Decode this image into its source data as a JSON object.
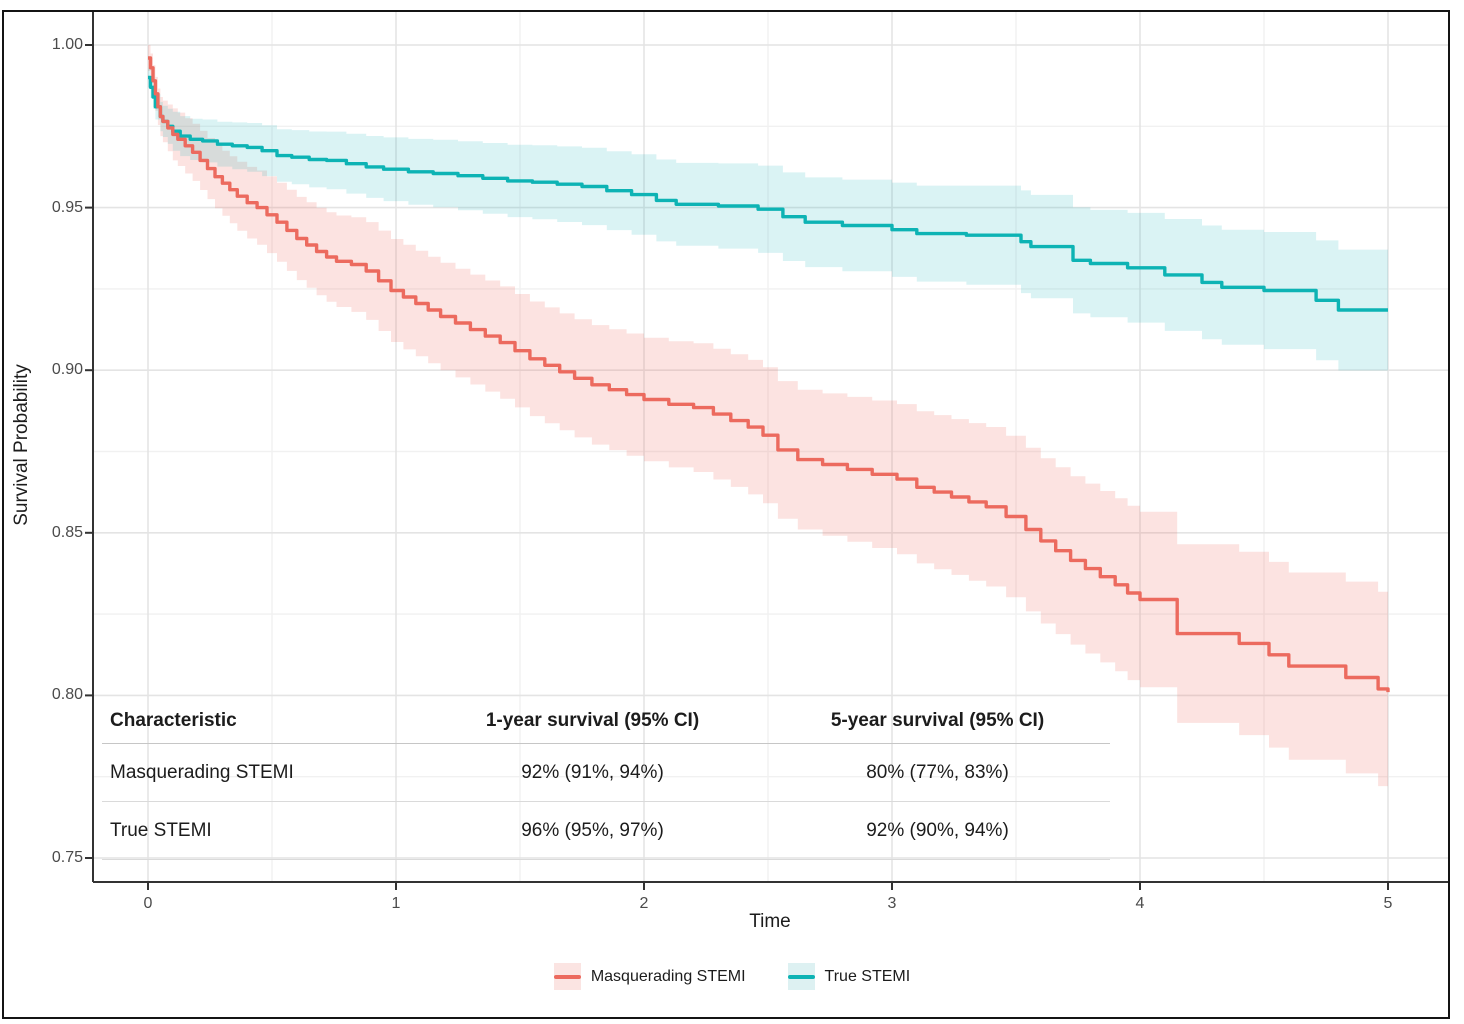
{
  "figure": {
    "background": "#ffffff",
    "border_color": "#141414"
  },
  "axes": {
    "x": {
      "label": "Time",
      "tick_labels": [
        "0",
        "1",
        "2",
        "3",
        "4",
        "5"
      ],
      "tick_values": [
        0,
        1,
        2,
        3,
        4,
        5
      ],
      "minor_values": [
        0.5,
        1.5,
        2.5,
        3.5,
        4.5
      ],
      "range": [
        0,
        5
      ]
    },
    "y": {
      "label": "Survival Probability",
      "tick_labels": [
        "1.00",
        "0.95",
        "0.90",
        "0.85",
        "0.80",
        "0.75"
      ],
      "tick_values": [
        1.0,
        0.95,
        0.9,
        0.85,
        0.8,
        0.75
      ],
      "minor_values": [
        0.975,
        0.925,
        0.875,
        0.825,
        0.775
      ],
      "range": [
        0.75,
        1.0
      ]
    }
  },
  "chart_data": {
    "type": "line",
    "subtype": "kaplan-meier-step-with-ci-ribbons",
    "title": "",
    "xlabel": "Time",
    "ylabel": "Survival Probability",
    "xlim": [
      0,
      5
    ],
    "ylim": [
      0.75,
      1.0
    ],
    "grid": true,
    "legend_position": "bottom",
    "grid_major_color": "#e4e4e4",
    "grid_minor_color": "#f1f1f1",
    "axis_line_color": "#333333",
    "series": [
      {
        "name": "Masquerading STEMI",
        "color": "#EC6A5E",
        "ribbon_color": "rgba(237,104,97,0.19)",
        "swatch_fill": "#FBE4E2",
        "points": [
          [
            0,
            0.996
          ],
          [
            0.01,
            0.993
          ],
          [
            0.02,
            0.989
          ],
          [
            0.03,
            0.985
          ],
          [
            0.04,
            0.981
          ],
          [
            0.05,
            0.978
          ],
          [
            0.06,
            0.9765
          ],
          [
            0.08,
            0.9745
          ],
          [
            0.1,
            0.9725
          ],
          [
            0.12,
            0.971
          ],
          [
            0.15,
            0.969
          ],
          [
            0.18,
            0.967
          ],
          [
            0.21,
            0.9645
          ],
          [
            0.24,
            0.962
          ],
          [
            0.27,
            0.9595
          ],
          [
            0.3,
            0.9575
          ],
          [
            0.33,
            0.9555
          ],
          [
            0.36,
            0.9535
          ],
          [
            0.4,
            0.9515
          ],
          [
            0.44,
            0.95
          ],
          [
            0.48,
            0.9478
          ],
          [
            0.52,
            0.9455
          ],
          [
            0.56,
            0.943
          ],
          [
            0.6,
            0.9405
          ],
          [
            0.64,
            0.9385
          ],
          [
            0.68,
            0.9365
          ],
          [
            0.72,
            0.9348
          ],
          [
            0.76,
            0.9335
          ],
          [
            0.82,
            0.9325
          ],
          [
            0.88,
            0.9305
          ],
          [
            0.93,
            0.9275
          ],
          [
            0.98,
            0.9245
          ],
          [
            1.03,
            0.9225
          ],
          [
            1.08,
            0.9205
          ],
          [
            1.13,
            0.9185
          ],
          [
            1.18,
            0.9165
          ],
          [
            1.24,
            0.9145
          ],
          [
            1.3,
            0.9125
          ],
          [
            1.36,
            0.9105
          ],
          [
            1.42,
            0.9085
          ],
          [
            1.48,
            0.906
          ],
          [
            1.54,
            0.9035
          ],
          [
            1.6,
            0.9015
          ],
          [
            1.66,
            0.8995
          ],
          [
            1.72,
            0.8975
          ],
          [
            1.79,
            0.8955
          ],
          [
            1.86,
            0.894
          ],
          [
            1.93,
            0.8925
          ],
          [
            2,
            0.891
          ],
          [
            2.1,
            0.8895
          ],
          [
            2.2,
            0.8885
          ],
          [
            2.28,
            0.8865
          ],
          [
            2.35,
            0.8845
          ],
          [
            2.42,
            0.8825
          ],
          [
            2.48,
            0.88
          ],
          [
            2.54,
            0.8755
          ],
          [
            2.62,
            0.8725
          ],
          [
            2.72,
            0.871
          ],
          [
            2.82,
            0.8695
          ],
          [
            2.92,
            0.868
          ],
          [
            3.02,
            0.8665
          ],
          [
            3.1,
            0.864
          ],
          [
            3.17,
            0.8625
          ],
          [
            3.24,
            0.861
          ],
          [
            3.31,
            0.8595
          ],
          [
            3.38,
            0.858
          ],
          [
            3.46,
            0.855
          ],
          [
            3.54,
            0.851
          ],
          [
            3.6,
            0.8475
          ],
          [
            3.66,
            0.8445
          ],
          [
            3.72,
            0.8415
          ],
          [
            3.78,
            0.839
          ],
          [
            3.84,
            0.8365
          ],
          [
            3.9,
            0.834
          ],
          [
            3.95,
            0.8315
          ],
          [
            4,
            0.8295
          ],
          [
            4.15,
            0.819
          ],
          [
            4.4,
            0.816
          ],
          [
            4.52,
            0.8125
          ],
          [
            4.6,
            0.809
          ],
          [
            4.83,
            0.8055
          ],
          [
            4.96,
            0.802
          ],
          [
            5,
            0.801
          ]
        ],
        "ci_halfwidth": [
          [
            0,
            0.004
          ],
          [
            0.1,
            0.008
          ],
          [
            0.5,
            0.012
          ],
          [
            1,
            0.016
          ],
          [
            2,
            0.019
          ],
          [
            3,
            0.023
          ],
          [
            4,
            0.027
          ],
          [
            5,
            0.03
          ]
        ]
      },
      {
        "name": "True STEMI",
        "color": "#0DB3B4",
        "ribbon_color": "rgba(23,181,184,0.16)",
        "swatch_fill": "#DDF1F2",
        "points": [
          [
            0,
            0.99
          ],
          [
            0.01,
            0.987
          ],
          [
            0.02,
            0.984
          ],
          [
            0.03,
            0.981
          ],
          [
            0.05,
            0.978
          ],
          [
            0.06,
            0.9765
          ],
          [
            0.08,
            0.975
          ],
          [
            0.1,
            0.9735
          ],
          [
            0.13,
            0.972
          ],
          [
            0.17,
            0.971
          ],
          [
            0.22,
            0.9705
          ],
          [
            0.28,
            0.9695
          ],
          [
            0.34,
            0.969
          ],
          [
            0.4,
            0.9685
          ],
          [
            0.46,
            0.9675
          ],
          [
            0.52,
            0.966
          ],
          [
            0.58,
            0.9655
          ],
          [
            0.65,
            0.9648
          ],
          [
            0.72,
            0.9645
          ],
          [
            0.8,
            0.9635
          ],
          [
            0.88,
            0.9625
          ],
          [
            0.95,
            0.9618
          ],
          [
            1.05,
            0.961
          ],
          [
            1.15,
            0.9605
          ],
          [
            1.25,
            0.9598
          ],
          [
            1.35,
            0.959
          ],
          [
            1.45,
            0.9582
          ],
          [
            1.55,
            0.9578
          ],
          [
            1.65,
            0.9572
          ],
          [
            1.75,
            0.9565
          ],
          [
            1.85,
            0.9552
          ],
          [
            1.95,
            0.954
          ],
          [
            2.05,
            0.9522
          ],
          [
            2.13,
            0.951
          ],
          [
            2.3,
            0.9505
          ],
          [
            2.46,
            0.9495
          ],
          [
            2.56,
            0.9472
          ],
          [
            2.65,
            0.9455
          ],
          [
            2.8,
            0.9445
          ],
          [
            3,
            0.9432
          ],
          [
            3.1,
            0.942
          ],
          [
            3.3,
            0.9415
          ],
          [
            3.52,
            0.9395
          ],
          [
            3.56,
            0.938
          ],
          [
            3.73,
            0.9338
          ],
          [
            3.8,
            0.9328
          ],
          [
            3.95,
            0.9315
          ],
          [
            4.1,
            0.9293
          ],
          [
            4.25,
            0.927
          ],
          [
            4.33,
            0.9255
          ],
          [
            4.5,
            0.9245
          ],
          [
            4.71,
            0.9215
          ],
          [
            4.8,
            0.9185
          ],
          [
            5,
            0.9185
          ]
        ],
        "ci_halfwidth": [
          [
            0,
            0.003
          ],
          [
            0.1,
            0.006
          ],
          [
            0.5,
            0.008
          ],
          [
            1,
            0.01
          ],
          [
            2,
            0.0125
          ],
          [
            3,
            0.0145
          ],
          [
            4,
            0.017
          ],
          [
            5,
            0.019
          ]
        ]
      }
    ]
  },
  "table": {
    "headers": [
      "Characteristic",
      "1-year survival (95% CI)",
      "5-year survival (95% CI)"
    ],
    "rows": [
      {
        "characteristic": "Masquerading STEMI",
        "one_year": "92% (91%, 94%)",
        "five_year": "80% (77%, 83%)"
      },
      {
        "characteristic": "True STEMI",
        "one_year": "96% (95%, 97%)",
        "five_year": "92% (90%, 94%)"
      }
    ]
  },
  "legend": {
    "items": [
      {
        "label": "Masquerading STEMI"
      },
      {
        "label": "True STEMI"
      }
    ]
  }
}
